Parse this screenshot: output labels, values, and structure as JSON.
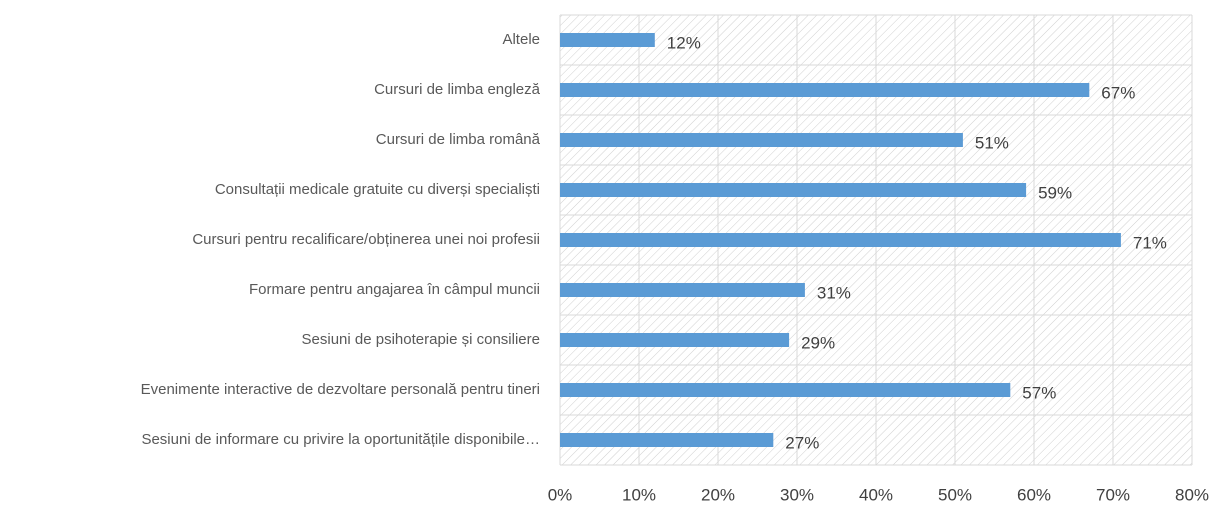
{
  "chart_data": {
    "type": "bar",
    "orientation": "horizontal",
    "categories": [
      "Altele",
      "Cursuri de limba engleză",
      "Cursuri de limba română",
      "Consultații medicale gratuite cu diverși specialiști",
      "Cursuri pentru recalificare/obținerea unei noi profesii",
      "Formare pentru angajarea în câmpul muncii",
      "Sesiuni de psihoterapie și consiliere",
      "Evenimente interactive de dezvoltare personală pentru tineri",
      "Sesiuni de informare cu privire la oportunitățile disponibile…"
    ],
    "values": [
      12,
      67,
      51,
      59,
      71,
      31,
      29,
      57,
      27
    ],
    "value_labels": [
      "12%",
      "67%",
      "51%",
      "59%",
      "71%",
      "31%",
      "29%",
      "57%",
      "27%"
    ],
    "color": "#5b9bd5",
    "xlim": [
      0,
      80
    ],
    "xticks": [
      {
        "value": 0,
        "label": "0%"
      },
      {
        "value": 10,
        "label": "10%"
      },
      {
        "value": 20,
        "label": "20%"
      },
      {
        "value": 30,
        "label": "30%"
      },
      {
        "value": 40,
        "label": "40%"
      },
      {
        "value": 50,
        "label": "50%"
      },
      {
        "value": 60,
        "label": "60%"
      },
      {
        "value": 70,
        "label": "70%"
      },
      {
        "value": 80,
        "label": "80%"
      }
    ],
    "grid": true
  }
}
